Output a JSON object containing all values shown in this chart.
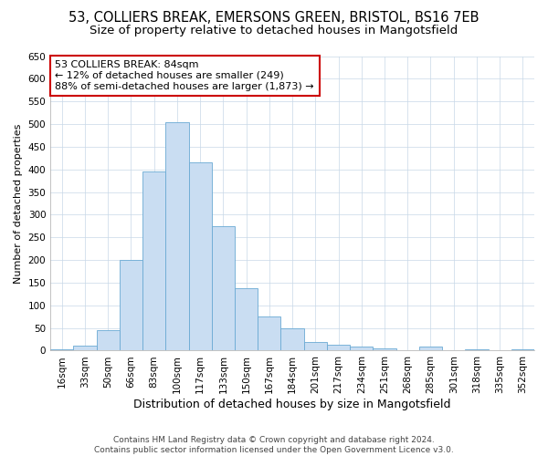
{
  "title1": "53, COLLIERS BREAK, EMERSONS GREEN, BRISTOL, BS16 7EB",
  "title2": "Size of property relative to detached houses in Mangotsfield",
  "xlabel": "Distribution of detached houses by size in Mangotsfield",
  "ylabel": "Number of detached properties",
  "categories": [
    "16sqm",
    "33sqm",
    "50sqm",
    "66sqm",
    "83sqm",
    "100sqm",
    "117sqm",
    "133sqm",
    "150sqm",
    "167sqm",
    "184sqm",
    "201sqm",
    "217sqm",
    "234sqm",
    "251sqm",
    "268sqm",
    "285sqm",
    "301sqm",
    "318sqm",
    "335sqm",
    "352sqm"
  ],
  "values": [
    3,
    10,
    45,
    200,
    395,
    505,
    415,
    275,
    138,
    75,
    50,
    20,
    12,
    8,
    5,
    0,
    8,
    0,
    2,
    0,
    2
  ],
  "bar_color": "#c9ddf2",
  "bar_edge_color": "#6aaad4",
  "annotation_box_text_line1": "53 COLLIERS BREAK: 84sqm",
  "annotation_box_text_line2": "← 12% of detached houses are smaller (249)",
  "annotation_box_text_line3": "88% of semi-detached houses are larger (1,873) →",
  "annotation_box_color": "#ffffff",
  "annotation_box_edge_color": "#cc0000",
  "ylim": [
    0,
    650
  ],
  "yticks": [
    0,
    50,
    100,
    150,
    200,
    250,
    300,
    350,
    400,
    450,
    500,
    550,
    600,
    650
  ],
  "background_color": "#ffffff",
  "grid_color": "#c8d8e8",
  "footer_text": "Contains HM Land Registry data © Crown copyright and database right 2024.\nContains public sector information licensed under the Open Government Licence v3.0.",
  "title1_fontsize": 10.5,
  "title2_fontsize": 9.5,
  "xlabel_fontsize": 9,
  "ylabel_fontsize": 8,
  "tick_fontsize": 7.5,
  "annotation_fontsize": 8,
  "footer_fontsize": 6.5
}
